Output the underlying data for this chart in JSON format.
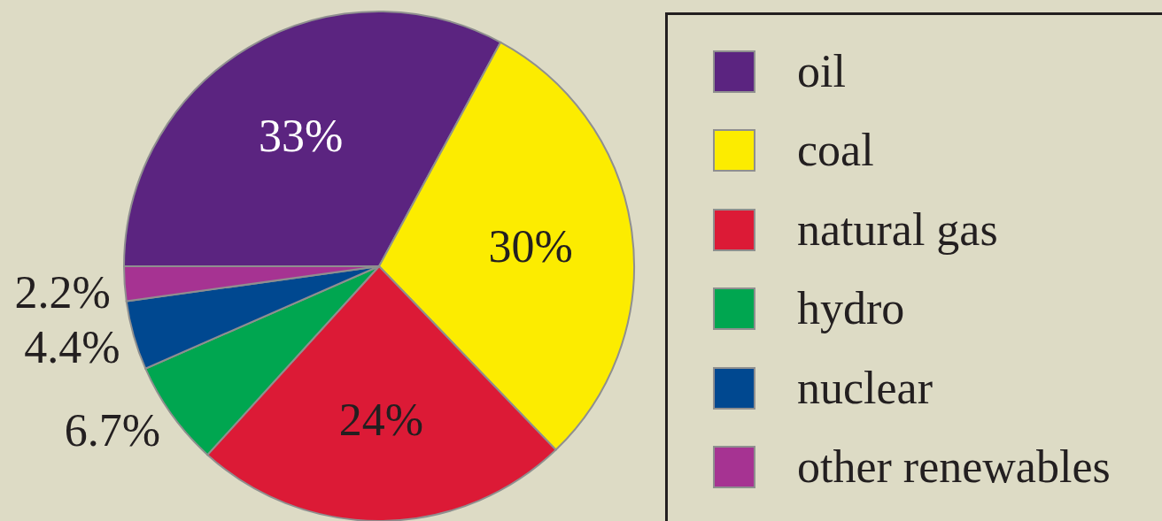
{
  "chart_data": {
    "type": "pie",
    "categories": [
      "oil",
      "coal",
      "natural gas",
      "hydro",
      "nuclear",
      "other renewables"
    ],
    "values": [
      33,
      30,
      24,
      6.7,
      4.4,
      2.2
    ],
    "colors": [
      "#5b2480",
      "#fcec00",
      "#dc1a36",
      "#00a650",
      "#004890",
      "#a63392"
    ],
    "value_labels": [
      "33%",
      "30%",
      "24%",
      "6.7%",
      "4.4%",
      "2.2%"
    ],
    "legend": "right"
  }
}
